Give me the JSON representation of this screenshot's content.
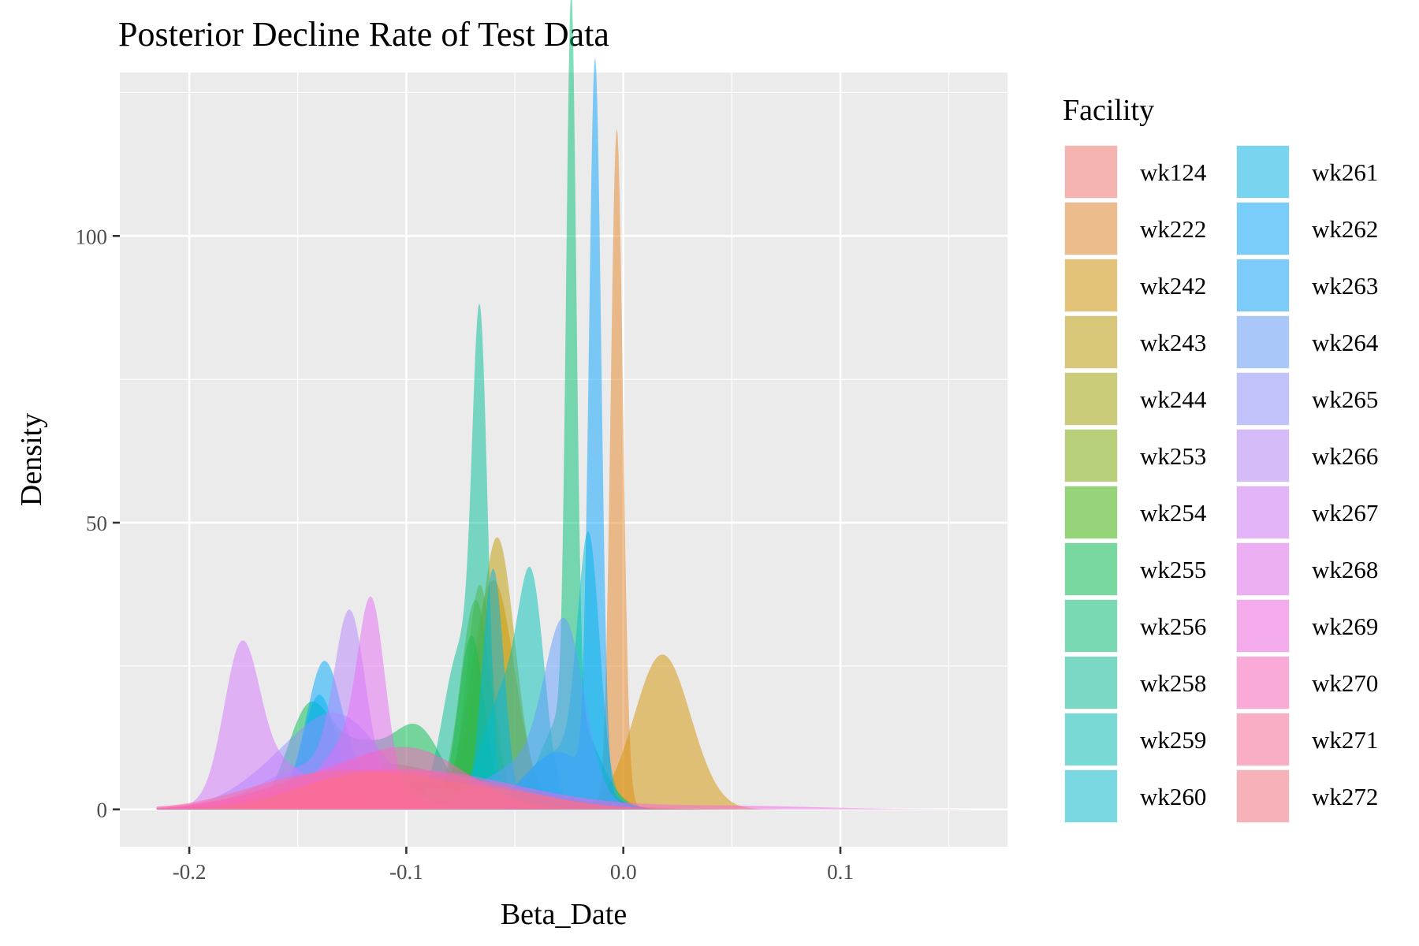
{
  "chart_data": {
    "type": "area",
    "subtype": "density",
    "title": "Posterior Decline Rate of Test Data",
    "xlabel": "Beta_Date",
    "ylabel": "Density",
    "xlim": [
      -0.232,
      0.177
    ],
    "ylim": [
      -6.5,
      128.5
    ],
    "x_ticks": [
      -0.2,
      -0.1,
      0.0,
      0.1
    ],
    "x_tick_labels": [
      "-0.2",
      "-0.1",
      "0.0",
      "0.1"
    ],
    "y_ticks": [
      0,
      50,
      100
    ],
    "y_tick_labels": [
      "0",
      "50",
      "100"
    ],
    "grid": true,
    "legend": {
      "title": "Facility",
      "placement": "right"
    },
    "series": [
      {
        "name": "wk124",
        "color": "#F8766D",
        "components": [
          {
            "mu": -0.11,
            "sd": 0.035,
            "peak": 8
          }
        ]
      },
      {
        "name": "wk222",
        "color": "#E88526",
        "components": [
          {
            "mu": -0.003,
            "sd": 0.0028,
            "peak": 118
          },
          {
            "mu": -0.08,
            "sd": 0.04,
            "peak": 5
          }
        ]
      },
      {
        "name": "wk242",
        "color": "#D39200",
        "components": [
          {
            "mu": 0.018,
            "sd": 0.013,
            "peak": 27
          },
          {
            "mu": -0.06,
            "sd": 0.01,
            "peak": 40
          }
        ]
      },
      {
        "name": "wk243",
        "color": "#BE9C00",
        "components": [
          {
            "mu": -0.058,
            "sd": 0.008,
            "peak": 44
          },
          {
            "mu": -0.1,
            "sd": 0.04,
            "peak": 6
          }
        ]
      },
      {
        "name": "wk244",
        "color": "#A3A500",
        "components": [
          {
            "mu": -0.066,
            "sd": 0.006,
            "peak": 38
          },
          {
            "mu": -0.12,
            "sd": 0.03,
            "peak": 6
          }
        ]
      },
      {
        "name": "wk253",
        "color": "#7CAE00",
        "components": [
          {
            "mu": -0.068,
            "sd": 0.007,
            "peak": 36
          },
          {
            "mu": -0.13,
            "sd": 0.03,
            "peak": 5
          }
        ]
      },
      {
        "name": "wk254",
        "color": "#39B600",
        "components": [
          {
            "mu": -0.07,
            "sd": 0.006,
            "peak": 30
          },
          {
            "mu": -0.14,
            "sd": 0.03,
            "peak": 5
          }
        ]
      },
      {
        "name": "wk255",
        "color": "#00BB4E",
        "components": [
          {
            "mu": -0.095,
            "sd": 0.012,
            "peak": 14
          },
          {
            "mu": -0.145,
            "sd": 0.01,
            "peak": 17
          },
          {
            "mu": -0.122,
            "sd": 0.012,
            "peak": 10
          }
        ]
      },
      {
        "name": "wk256",
        "color": "#00BF74",
        "components": [
          {
            "mu": -0.024,
            "sd": 0.0023,
            "peak": 125
          },
          {
            "mu": -0.025,
            "sd": 0.012,
            "peak": 18
          }
        ]
      },
      {
        "name": "wk258",
        "color": "#00C097",
        "components": [
          {
            "mu": -0.066,
            "sd": 0.0035,
            "peak": 73
          },
          {
            "mu": -0.075,
            "sd": 0.008,
            "peak": 28
          }
        ]
      },
      {
        "name": "wk259",
        "color": "#00C0B5",
        "components": [
          {
            "mu": -0.042,
            "sd": 0.006,
            "peak": 33
          },
          {
            "mu": -0.055,
            "sd": 0.01,
            "peak": 20
          }
        ]
      },
      {
        "name": "wk260",
        "color": "#00BDD0",
        "components": [
          {
            "mu": -0.016,
            "sd": 0.005,
            "peak": 42
          },
          {
            "mu": -0.03,
            "sd": 0.015,
            "peak": 10
          }
        ]
      },
      {
        "name": "wk261",
        "color": "#00B6EB",
        "components": [
          {
            "mu": -0.06,
            "sd": 0.005,
            "peak": 42
          },
          {
            "mu": -0.14,
            "sd": 0.008,
            "peak": 20
          }
        ]
      },
      {
        "name": "wk262",
        "color": "#00A9FF",
        "components": [
          {
            "mu": -0.138,
            "sd": 0.008,
            "peak": 22
          },
          {
            "mu": -0.11,
            "sd": 0.03,
            "peak": 6
          }
        ]
      },
      {
        "name": "wk263",
        "color": "#06A4FF",
        "components": [
          {
            "mu": -0.013,
            "sd": 0.0028,
            "peak": 126
          },
          {
            "mu": -0.03,
            "sd": 0.015,
            "peak": 10
          }
        ]
      },
      {
        "name": "wk264",
        "color": "#619CFF",
        "components": [
          {
            "mu": -0.027,
            "sd": 0.009,
            "peak": 28
          },
          {
            "mu": -0.045,
            "sd": 0.02,
            "peak": 8
          }
        ]
      },
      {
        "name": "wk265",
        "color": "#8F91FF",
        "components": [
          {
            "mu": -0.13,
            "sd": 0.02,
            "peak": 15
          },
          {
            "mu": -0.16,
            "sd": 0.02,
            "peak": 5
          }
        ]
      },
      {
        "name": "wk266",
        "color": "#B983FF",
        "components": [
          {
            "mu": -0.126,
            "sd": 0.007,
            "peak": 28
          },
          {
            "mu": -0.14,
            "sd": 0.025,
            "peak": 8
          }
        ]
      },
      {
        "name": "wk267",
        "color": "#D575FE",
        "components": [
          {
            "mu": -0.176,
            "sd": 0.008,
            "peak": 24
          },
          {
            "mu": -0.16,
            "sd": 0.018,
            "peak": 8
          }
        ]
      },
      {
        "name": "wk268",
        "color": "#E76BF3",
        "components": [
          {
            "mu": -0.116,
            "sd": 0.006,
            "peak": 27
          },
          {
            "mu": -0.125,
            "sd": 0.015,
            "peak": 12
          }
        ]
      },
      {
        "name": "wk269",
        "color": "#F564E3",
        "components": [
          {
            "mu": -0.1,
            "sd": 0.05,
            "peak": 7
          },
          {
            "mu": 0.05,
            "sd": 0.04,
            "peak": 0.6
          }
        ]
      },
      {
        "name": "wk270",
        "color": "#FF62BC",
        "components": [
          {
            "mu": -0.095,
            "sd": 0.025,
            "peak": 9
          },
          {
            "mu": -0.14,
            "sd": 0.03,
            "peak": 5
          }
        ]
      },
      {
        "name": "wk271",
        "color": "#FF6A98",
        "components": [
          {
            "mu": -0.09,
            "sd": 0.04,
            "peak": 6
          },
          {
            "mu": -0.15,
            "sd": 0.03,
            "peak": 4
          }
        ]
      },
      {
        "name": "wk272",
        "color": "#FC717F",
        "components": [
          {
            "mu": -0.12,
            "sd": 0.03,
            "peak": 6
          },
          {
            "mu": -0.06,
            "sd": 0.03,
            "peak": 3
          }
        ]
      }
    ]
  }
}
